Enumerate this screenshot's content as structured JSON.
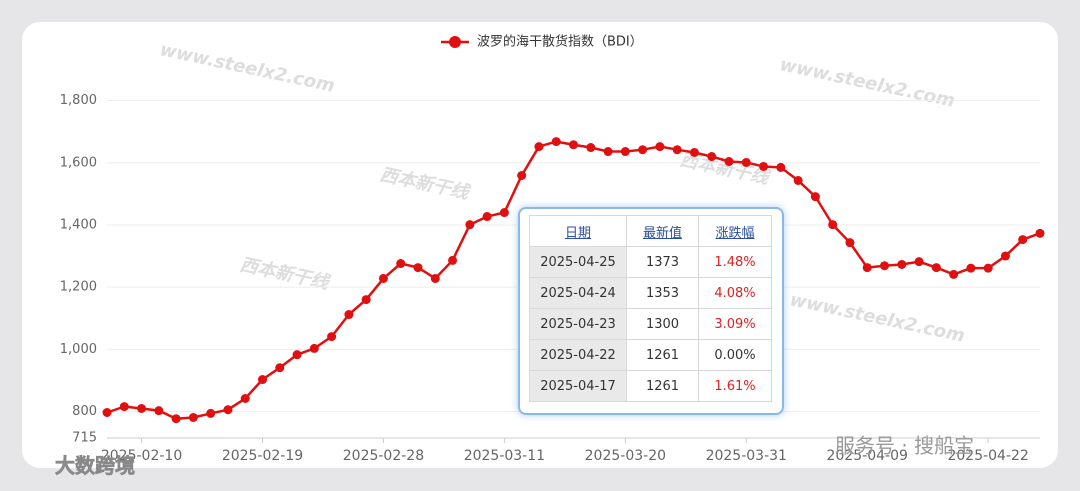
{
  "chart_data": {
    "type": "line",
    "categories": [
      null,
      null,
      "2025-02-10",
      null,
      null,
      null,
      null,
      null,
      null,
      "2025-02-19",
      null,
      null,
      null,
      null,
      null,
      null,
      "2025-02-28",
      null,
      null,
      null,
      null,
      null,
      null,
      "2025-03-11",
      null,
      null,
      null,
      null,
      null,
      null,
      "2025-03-20",
      null,
      null,
      null,
      null,
      null,
      null,
      "2025-03-31",
      null,
      null,
      null,
      null,
      null,
      null,
      "2025-04-09",
      null,
      null,
      null,
      null,
      null,
      null,
      "2025-04-22",
      null,
      null,
      null
    ],
    "series": [
      {
        "name": "波罗的海干散货指数（BDI）",
        "color": "#e01010",
        "values": [
          797,
          816,
          810,
          803,
          777,
          781,
          794,
          806,
          842,
          903,
          941,
          983,
          1003,
          1041,
          1112,
          1160,
          1228,
          1276,
          1263,
          1228,
          1286,
          1401,
          1427,
          1440,
          1559,
          1652,
          1668,
          1658,
          1649,
          1636,
          1636,
          1642,
          1652,
          1642,
          1633,
          1620,
          1604,
          1601,
          1588,
          1585,
          1543,
          1491,
          1401,
          1343,
          1263,
          1269,
          1273,
          1282,
          1263,
          1241,
          1261,
          1261,
          1300,
          1353,
          1373
        ]
      }
    ],
    "ylim": [
      715,
      1850
    ],
    "yticks": [
      715,
      800,
      {
        "value": 1000,
        "label": "1,000"
      },
      {
        "value": 1200,
        "label": "1,200"
      },
      {
        "value": 1400,
        "label": "1,400"
      },
      {
        "value": 1600,
        "label": "1,600"
      },
      {
        "value": 1800,
        "label": "1,800"
      }
    ],
    "grid": true,
    "legend": "top"
  },
  "table": {
    "headers": [
      "日期",
      "最新值",
      "涨跌幅"
    ],
    "rows": [
      [
        "2025-04-25",
        "1373",
        "1.48%"
      ],
      [
        "2025-04-24",
        "1353",
        "4.08%"
      ],
      [
        "2025-04-23",
        "1300",
        "3.09%"
      ],
      [
        "2025-04-22",
        "1261",
        "0.00%"
      ],
      [
        "2025-04-17",
        "1261",
        "1.61%"
      ]
    ]
  },
  "watermarks": [
    "www.steelx2.com",
    "西本新干线"
  ],
  "footer": {
    "left": "大数跨境",
    "right": "服务号 · 搜船宝"
  }
}
